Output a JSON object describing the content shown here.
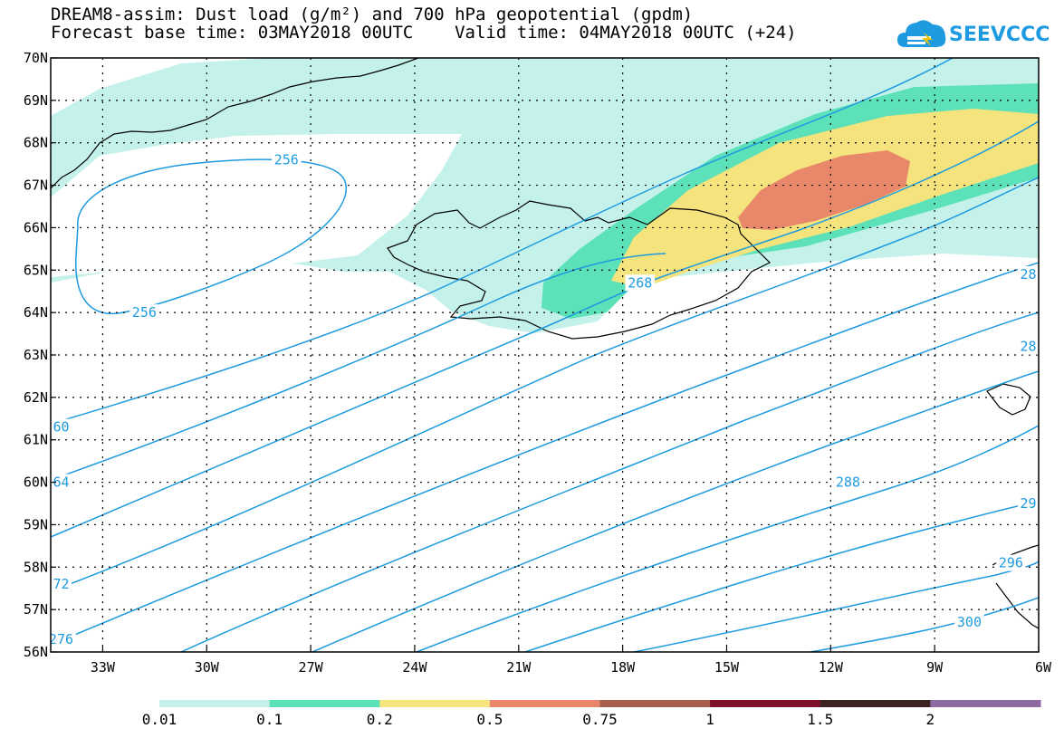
{
  "title": {
    "line1": "DREAM8-assim: Dust load (g/m²) and 700 hPa geopotential (gpdm)",
    "line2": "Forecast base time: 03MAY2018 00UTC    Valid time: 04MAY2018 00UTC (+24)"
  },
  "logo": {
    "text": "SEEVCCC",
    "color": "#1e9be0",
    "icon": "cloud-icon"
  },
  "colors": {
    "contour": "#1e9be0",
    "coast": "#000000",
    "levels": [
      "#c4f2ea",
      "#5ce1b9",
      "#f5e37d",
      "#e8876a",
      "#a65e4f",
      "#7d0f2d",
      "#3a2320",
      "#8e6aa2"
    ]
  },
  "axes": {
    "lat_labels": [
      "70N",
      "69N",
      "68N",
      "67N",
      "66N",
      "65N",
      "64N",
      "63N",
      "62N",
      "61N",
      "60N",
      "59N",
      "58N",
      "57N",
      "56N"
    ],
    "lon_labels": [
      "33W",
      "30W",
      "27W",
      "24W",
      "21W",
      "18W",
      "15W",
      "12W",
      "9W",
      "6W"
    ],
    "lon_range": [
      -34.5,
      -6
    ],
    "lat_range": [
      56,
      70
    ],
    "grid": "dotted"
  },
  "contour_labels": [
    {
      "text": "256",
      "lon": -27.7,
      "lat": 67.6
    },
    {
      "text": "256",
      "lon": -31.8,
      "lat": 64.0
    },
    {
      "text": "268",
      "lon": -17.5,
      "lat": 64.7
    },
    {
      "text": "60",
      "lon": -34.2,
      "lat": 61.3
    },
    {
      "text": "64",
      "lon": -34.2,
      "lat": 60.0
    },
    {
      "text": "72",
      "lon": -34.2,
      "lat": 57.6
    },
    {
      "text": "276",
      "lon": -34.2,
      "lat": 56.3
    },
    {
      "text": "288",
      "lon": -11.5,
      "lat": 60.0
    },
    {
      "text": "28",
      "lon": -6.3,
      "lat": 64.9
    },
    {
      "text": "28",
      "lon": -6.3,
      "lat": 63.2
    },
    {
      "text": "29",
      "lon": -6.3,
      "lat": 59.5
    },
    {
      "text": "296",
      "lon": -6.8,
      "lat": 58.1
    },
    {
      "text": "300",
      "lon": -8.0,
      "lat": 56.7
    }
  ],
  "colorbar": {
    "labels": [
      "0.01",
      "0.1",
      "0.2",
      "0.5",
      "0.75",
      "1",
      "1.5",
      "2"
    ],
    "colors": [
      "#c4f2ea",
      "#5ce1b9",
      "#f5e37d",
      "#e8876a",
      "#a65e4f",
      "#7d0f2d",
      "#3a2320",
      "#8e6aa2"
    ]
  }
}
